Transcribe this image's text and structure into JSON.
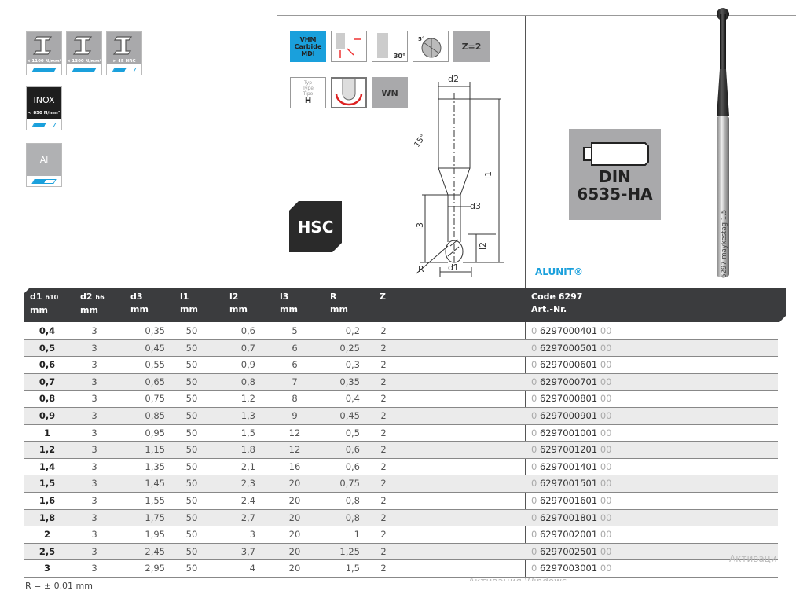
{
  "materials": [
    {
      "label": "< 1100 N/mm²",
      "icon": "steel-beam-icon",
      "level": 1.0
    },
    {
      "label": "< 1300 N/mm²",
      "icon": "steel-beam-icon",
      "level": 1.0
    },
    {
      "label": "> 45 HRC",
      "icon": "steel-beam-icon",
      "level": 0.5
    },
    {
      "title": "INOX",
      "label": "< 850 N/mm²",
      "level": 0.5
    },
    {
      "title": "Al",
      "level": 0.5
    }
  ],
  "features": {
    "carbide": [
      "VHM",
      "Carbide",
      "MDI"
    ],
    "helix_angle": "30°",
    "relief_angle": "5°",
    "flutes": "Z=2",
    "type_labels": [
      "Typ",
      "Type",
      "Tipo"
    ],
    "type_value": "H",
    "shank": "WN",
    "hsc": "HSC"
  },
  "drawing": {
    "d2": "d2",
    "d1": "d1",
    "d3": "d3",
    "l1": "l1",
    "l2": "l2",
    "l3": "l3",
    "r": "R",
    "angle": "15°"
  },
  "din": [
    "DIN",
    "6535-HA"
  ],
  "brand": "ALUNIT®",
  "tool_marking": "6297 maykestag 1.5",
  "table": {
    "headers": [
      {
        "name": "d1",
        "sub": "h10",
        "unit": "mm"
      },
      {
        "name": "d2",
        "sub": "h6",
        "unit": "mm"
      },
      {
        "name": "d3",
        "sub": "",
        "unit": "mm"
      },
      {
        "name": "l1",
        "sub": "",
        "unit": "mm"
      },
      {
        "name": "l2",
        "sub": "",
        "unit": "mm"
      },
      {
        "name": "l3",
        "sub": "",
        "unit": "mm"
      },
      {
        "name": "R",
        "sub": "",
        "unit": "mm"
      },
      {
        "name": "Z",
        "sub": "",
        "unit": ""
      }
    ],
    "code_header": "Code 6297",
    "art_header": "Art.-Nr.",
    "rows": [
      {
        "d1": "0,4",
        "d2": "3",
        "d3": "0,35",
        "l1": "50",
        "l2": "0,6",
        "l3": "5",
        "r": "0,2",
        "z": "2",
        "art_pre": "0",
        "art": "6297000401",
        "art_suf": "00"
      },
      {
        "d1": "0,5",
        "d2": "3",
        "d3": "0,45",
        "l1": "50",
        "l2": "0,7",
        "l3": "6",
        "r": "0,25",
        "z": "2",
        "art_pre": "0",
        "art": "6297000501",
        "art_suf": "00"
      },
      {
        "d1": "0,6",
        "d2": "3",
        "d3": "0,55",
        "l1": "50",
        "l2": "0,9",
        "l3": "6",
        "r": "0,3",
        "z": "2",
        "art_pre": "0",
        "art": "6297000601",
        "art_suf": "00"
      },
      {
        "d1": "0,7",
        "d2": "3",
        "d3": "0,65",
        "l1": "50",
        "l2": "0,8",
        "l3": "7",
        "r": "0,35",
        "z": "2",
        "art_pre": "0",
        "art": "6297000701",
        "art_suf": "00"
      },
      {
        "d1": "0,8",
        "d2": "3",
        "d3": "0,75",
        "l1": "50",
        "l2": "1,2",
        "l3": "8",
        "r": "0,4",
        "z": "2",
        "art_pre": "0",
        "art": "6297000801",
        "art_suf": "00"
      },
      {
        "d1": "0,9",
        "d2": "3",
        "d3": "0,85",
        "l1": "50",
        "l2": "1,3",
        "l3": "9",
        "r": "0,45",
        "z": "2",
        "art_pre": "0",
        "art": "6297000901",
        "art_suf": "00"
      },
      {
        "d1": "1",
        "d2": "3",
        "d3": "0,95",
        "l1": "50",
        "l2": "1,5",
        "l3": "12",
        "r": "0,5",
        "z": "2",
        "art_pre": "0",
        "art": "6297001001",
        "art_suf": "00"
      },
      {
        "d1": "1,2",
        "d2": "3",
        "d3": "1,15",
        "l1": "50",
        "l2": "1,8",
        "l3": "12",
        "r": "0,6",
        "z": "2",
        "art_pre": "0",
        "art": "6297001201",
        "art_suf": "00"
      },
      {
        "d1": "1,4",
        "d2": "3",
        "d3": "1,35",
        "l1": "50",
        "l2": "2,1",
        "l3": "16",
        "r": "0,6",
        "z": "2",
        "art_pre": "0",
        "art": "6297001401",
        "art_suf": "00"
      },
      {
        "d1": "1,5",
        "d2": "3",
        "d3": "1,45",
        "l1": "50",
        "l2": "2,3",
        "l3": "20",
        "r": "0,75",
        "z": "2",
        "art_pre": "0",
        "art": "6297001501",
        "art_suf": "00"
      },
      {
        "d1": "1,6",
        "d2": "3",
        "d3": "1,55",
        "l1": "50",
        "l2": "2,4",
        "l3": "20",
        "r": "0,8",
        "z": "2",
        "art_pre": "0",
        "art": "6297001601",
        "art_suf": "00"
      },
      {
        "d1": "1,8",
        "d2": "3",
        "d3": "1,75",
        "l1": "50",
        "l2": "2,7",
        "l3": "20",
        "r": "0,8",
        "z": "2",
        "art_pre": "0",
        "art": "6297001801",
        "art_suf": "00"
      },
      {
        "d1": "2",
        "d2": "3",
        "d3": "1,95",
        "l1": "50",
        "l2": "3",
        "l3": "20",
        "r": "1",
        "z": "2",
        "art_pre": "0",
        "art": "6297002001",
        "art_suf": "00"
      },
      {
        "d1": "2,5",
        "d2": "3",
        "d3": "2,45",
        "l1": "50",
        "l2": "3,7",
        "l3": "20",
        "r": "1,25",
        "z": "2",
        "art_pre": "0",
        "art": "6297002501",
        "art_suf": "00"
      },
      {
        "d1": "3",
        "d2": "3",
        "d3": "2,95",
        "l1": "50",
        "l2": "4",
        "l3": "20",
        "r": "1,5",
        "z": "2",
        "art_pre": "0",
        "art": "6297003001",
        "art_suf": "00"
      }
    ]
  },
  "footnote": "R = ± 0,01 mm",
  "overlay_text": [
    "Активаци",
    "Активация Windows"
  ],
  "colors": {
    "accent": "#1aa0dc",
    "header": "#3b3c3e",
    "alt_row": "#ebebeb"
  }
}
